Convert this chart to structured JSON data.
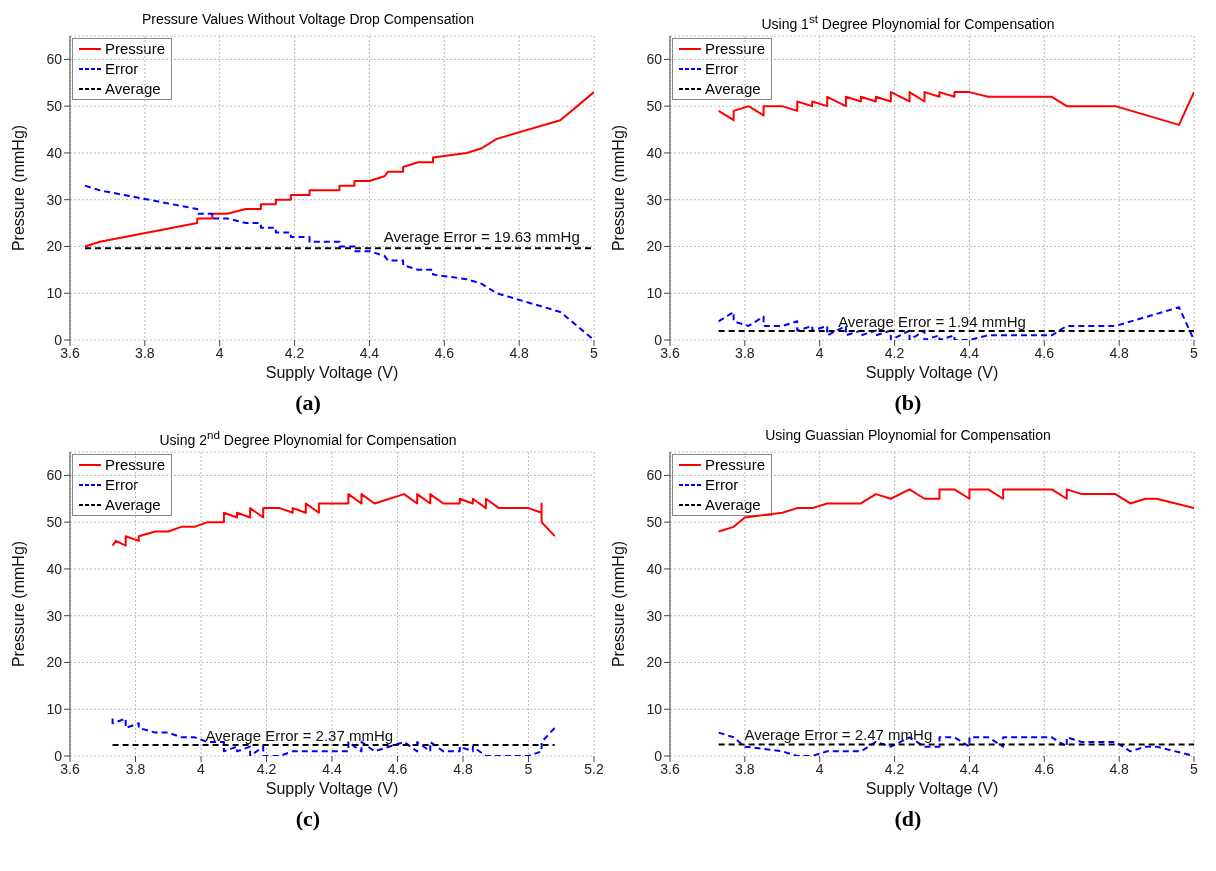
{
  "chart_data": [
    {
      "type": "line",
      "title": "Pressure Values Without Voltage Drop Compensation",
      "xlabel": "Supply Voltage (V)",
      "ylabel": "Pressure (mmHg)",
      "xlim": [
        3.6,
        5
      ],
      "xticks": [
        3.6,
        3.8,
        4,
        4.2,
        4.4,
        4.6,
        4.8,
        5
      ],
      "ylim": [
        0,
        65
      ],
      "yticks": [
        0,
        10,
        20,
        30,
        40,
        50,
        60
      ],
      "grid": true,
      "legend": "top left",
      "annotations": [
        {
          "text": "Average Error = 19.63 mmHg",
          "x": 4.7,
          "y": 20
        },
        "(a)"
      ],
      "series": [
        {
          "name": "Pressure",
          "color": "#ff0000",
          "line_style": "solid",
          "x": [
            3.64,
            3.68,
            3.94,
            3.94,
            3.98,
            3.98,
            4.02,
            4.07,
            4.11,
            4.11,
            4.15,
            4.15,
            4.19,
            4.19,
            4.24,
            4.24,
            4.32,
            4.32,
            4.36,
            4.36,
            4.4,
            4.44,
            4.45,
            4.49,
            4.49,
            4.53,
            4.57,
            4.57,
            4.66,
            4.7,
            4.74,
            4.91,
            5
          ],
          "values": [
            20,
            21,
            25,
            26,
            26,
            27,
            27,
            28,
            28,
            29,
            29,
            30,
            30,
            31,
            31,
            32,
            32,
            33,
            33,
            34,
            34,
            35,
            36,
            36,
            37,
            38,
            38,
            39,
            40,
            41,
            43,
            47,
            53
          ]
        },
        {
          "name": "Error",
          "color": "#0000ff",
          "line_style": "dashed",
          "x": [
            3.64,
            3.68,
            3.94,
            3.94,
            3.98,
            3.98,
            4.02,
            4.07,
            4.11,
            4.11,
            4.15,
            4.15,
            4.19,
            4.19,
            4.24,
            4.24,
            4.32,
            4.32,
            4.36,
            4.36,
            4.4,
            4.44,
            4.45,
            4.49,
            4.49,
            4.53,
            4.57,
            4.57,
            4.66,
            4.7,
            4.74,
            4.91,
            5
          ],
          "values": [
            33,
            32,
            28,
            27,
            27,
            26,
            26,
            25,
            25,
            24,
            24,
            23,
            23,
            22,
            22,
            21,
            21,
            20,
            20,
            19,
            19,
            18,
            17,
            17,
            16,
            15,
            15,
            14,
            13,
            12,
            10,
            6,
            0
          ]
        },
        {
          "name": "Average",
          "color": "#000000",
          "line_style": "dashed",
          "x": [
            3.64,
            5
          ],
          "values": [
            19.63,
            19.63
          ]
        }
      ]
    },
    {
      "type": "line",
      "title": "Using 1$^{st}$ Degree Ploynomial for Compensation",
      "xlabel": "Supply Voltage (V)",
      "ylabel": "Pressure (mmHg)",
      "xlim": [
        3.6,
        5
      ],
      "xticks": [
        3.6,
        3.8,
        4,
        4.2,
        4.4,
        4.6,
        4.8,
        5
      ],
      "ylim": [
        0,
        65
      ],
      "yticks": [
        0,
        10,
        20,
        30,
        40,
        50,
        60
      ],
      "grid": true,
      "legend": "top left",
      "annotations": [
        {
          "text": "Average Error = 1.94 mmHg",
          "x": 4.3,
          "y": 2
        },
        "(b)"
      ],
      "series": [
        {
          "name": "Pressure",
          "color": "#ff0000",
          "line_style": "solid",
          "x": [
            3.73,
            3.77,
            3.77,
            3.81,
            3.85,
            3.85,
            3.9,
            3.94,
            3.94,
            3.98,
            3.98,
            4.02,
            4.02,
            4.07,
            4.07,
            4.11,
            4.11,
            4.15,
            4.15,
            4.19,
            4.19,
            4.24,
            4.24,
            4.28,
            4.28,
            4.32,
            4.32,
            4.36,
            4.36,
            4.4,
            4.45,
            4.62,
            4.66,
            4.79,
            4.96,
            5
          ],
          "values": [
            49,
            47,
            49,
            50,
            48,
            50,
            50,
            49,
            51,
            50,
            51,
            50,
            52,
            50,
            52,
            51,
            52,
            51,
            52,
            51,
            53,
            51,
            53,
            51,
            53,
            52,
            53,
            52,
            53,
            53,
            52,
            52,
            50,
            50,
            46,
            53
          ]
        },
        {
          "name": "Error",
          "color": "#0000ff",
          "line_style": "dashed",
          "x": [
            3.73,
            3.77,
            3.77,
            3.81,
            3.85,
            3.85,
            3.9,
            3.94,
            3.94,
            3.98,
            3.98,
            4.02,
            4.02,
            4.07,
            4.07,
            4.11,
            4.11,
            4.15,
            4.15,
            4.19,
            4.19,
            4.24,
            4.24,
            4.28,
            4.28,
            4.32,
            4.32,
            4.36,
            4.36,
            4.4,
            4.45,
            4.62,
            4.66,
            4.79,
            4.96,
            5
          ],
          "values": [
            4,
            6,
            4,
            3,
            5,
            3,
            3,
            4,
            2,
            3,
            2,
            3,
            1,
            3,
            1,
            2,
            1,
            2,
            1,
            2,
            0,
            2,
            0,
            2,
            0,
            1,
            0,
            1,
            0,
            0,
            1,
            1,
            3,
            3,
            7,
            0
          ]
        },
        {
          "name": "Average",
          "color": "#000000",
          "line_style": "dashed",
          "x": [
            3.73,
            5
          ],
          "values": [
            1.94,
            1.94
          ]
        }
      ]
    },
    {
      "type": "line",
      "title": "Using 2$^{nd}$ Degree Ploynomial for Compensation",
      "xlabel": "Supply Voltage (V)",
      "ylabel": "Pressure (mmHg)",
      "xlim": [
        3.6,
        5.2
      ],
      "xticks": [
        3.6,
        3.8,
        4,
        4.2,
        4.4,
        4.6,
        4.8,
        5,
        5.2
      ],
      "ylim": [
        0,
        65
      ],
      "yticks": [
        0,
        10,
        20,
        30,
        40,
        50,
        60
      ],
      "grid": true,
      "legend": "top left",
      "annotations": [
        {
          "text": "Average Error = 2.37 mmHg",
          "x": 4.3,
          "y": 2.4
        },
        "(c)"
      ],
      "series": [
        {
          "name": "Pressure",
          "color": "#ff0000",
          "line_style": "solid",
          "x": [
            3.73,
            3.74,
            3.77,
            3.77,
            3.81,
            3.81,
            3.86,
            3.9,
            3.94,
            3.98,
            4.02,
            4.07,
            4.07,
            4.11,
            4.11,
            4.15,
            4.15,
            4.19,
            4.19,
            4.24,
            4.28,
            4.28,
            4.32,
            4.32,
            4.36,
            4.36,
            4.45,
            4.45,
            4.49,
            4.49,
            4.53,
            4.62,
            4.66,
            4.66,
            4.7,
            4.7,
            4.74,
            4.79,
            4.79,
            4.83,
            4.83,
            4.87,
            4.87,
            4.91,
            5,
            5.04,
            5.04,
            5.04,
            5.08
          ],
          "values": [
            45,
            46,
            45,
            47,
            46,
            47,
            48,
            48,
            49,
            49,
            50,
            50,
            52,
            51,
            52,
            51,
            53,
            51,
            53,
            53,
            52,
            53,
            52,
            54,
            52,
            54,
            54,
            56,
            54,
            56,
            54,
            56,
            54,
            56,
            54,
            56,
            54,
            54,
            55,
            54,
            55,
            53,
            55,
            53,
            53,
            52,
            54,
            50,
            47
          ]
        },
        {
          "name": "Error",
          "color": "#0000ff",
          "line_style": "dashed",
          "x": [
            3.73,
            3.73,
            3.77,
            3.77,
            3.81,
            3.81,
            3.86,
            3.9,
            3.94,
            3.98,
            4.02,
            4.07,
            4.07,
            4.11,
            4.11,
            4.15,
            4.15,
            4.19,
            4.19,
            4.24,
            4.28,
            4.32,
            4.36,
            4.45,
            4.45,
            4.49,
            4.49,
            4.53,
            4.62,
            4.66,
            4.66,
            4.7,
            4.7,
            4.74,
            4.79,
            4.79,
            4.83,
            4.83,
            4.87,
            4.91,
            5,
            5.04,
            5.04,
            5.08
          ],
          "values": [
            8,
            7,
            8,
            6,
            7,
            6,
            5,
            5,
            4,
            4,
            3,
            3,
            1,
            2,
            1,
            2,
            0,
            2,
            0,
            0,
            1,
            1,
            1,
            1,
            3,
            1,
            3,
            1,
            3,
            1,
            3,
            1,
            3,
            1,
            1,
            2,
            1,
            2,
            0,
            0,
            0,
            1,
            3,
            6
          ]
        },
        {
          "name": "Average",
          "color": "#000000",
          "line_style": "dashed",
          "x": [
            3.73,
            5.08
          ],
          "values": [
            2.37,
            2.37
          ]
        }
      ]
    },
    {
      "type": "line",
      "title": "Using Guassian Ploynomial for Compensation",
      "xlabel": "Supply Voltage (V)",
      "ylabel": "Pressure (mmHg)",
      "xlim": [
        3.6,
        5
      ],
      "xticks": [
        3.6,
        3.8,
        4,
        4.2,
        4.4,
        4.6,
        4.8,
        5
      ],
      "ylim": [
        0,
        65
      ],
      "yticks": [
        0,
        10,
        20,
        30,
        40,
        50,
        60
      ],
      "grid": true,
      "legend": "top left",
      "annotations": [
        {
          "text": "Average Error = 2.47 mmHg",
          "x": 4.05,
          "y": 2.5
        },
        "(d)"
      ],
      "series": [
        {
          "name": "Pressure",
          "color": "#ff0000",
          "line_style": "solid",
          "x": [
            3.73,
            3.77,
            3.8,
            3.9,
            3.94,
            3.98,
            4.02,
            4.11,
            4.15,
            4.19,
            4.24,
            4.28,
            4.32,
            4.32,
            4.36,
            4.4,
            4.4,
            4.45,
            4.49,
            4.49,
            4.62,
            4.66,
            4.66,
            4.7,
            4.79,
            4.83,
            4.87,
            4.9,
            5
          ],
          "values": [
            48,
            49,
            51,
            52,
            53,
            53,
            54,
            54,
            56,
            55,
            57,
            55,
            55,
            57,
            57,
            55,
            57,
            57,
            55,
            57,
            57,
            55,
            57,
            56,
            56,
            54,
            55,
            55,
            53
          ]
        },
        {
          "name": "Error",
          "color": "#0000ff",
          "line_style": "dashed",
          "x": [
            3.73,
            3.77,
            3.8,
            3.9,
            3.94,
            3.98,
            4.02,
            4.11,
            4.15,
            4.19,
            4.24,
            4.28,
            4.32,
            4.32,
            4.36,
            4.4,
            4.4,
            4.45,
            4.49,
            4.49,
            4.62,
            4.66,
            4.66,
            4.7,
            4.79,
            4.83,
            4.87,
            4.9,
            5
          ],
          "values": [
            5,
            4,
            2,
            1,
            0,
            0,
            1,
            1,
            3,
            2,
            4,
            2,
            2,
            4,
            4,
            2,
            4,
            4,
            2,
            4,
            4,
            2,
            4,
            3,
            3,
            1,
            2,
            2,
            0
          ]
        },
        {
          "name": "Average",
          "color": "#000000",
          "line_style": "dashed",
          "x": [
            3.73,
            5
          ],
          "values": [
            2.47,
            2.47
          ]
        }
      ]
    }
  ]
}
